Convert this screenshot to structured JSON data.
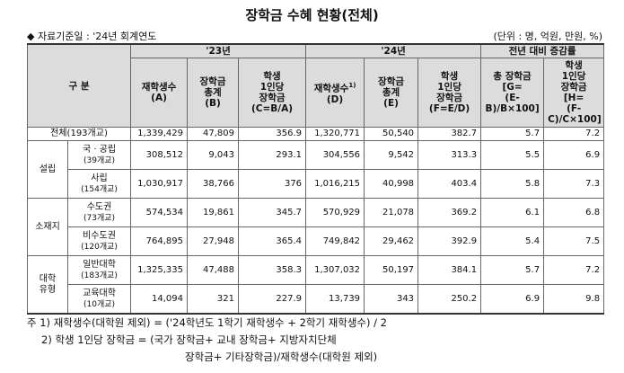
{
  "header": {
    "title": "장학금 수혜 현황(전체)",
    "basis": "◆ 자료기준일 : '24년 회계연도",
    "unit": "(단위 : 명, 억원, 만원, %)"
  },
  "table": {
    "head": {
      "category": "구 분",
      "groups": [
        "'23년",
        "'24년",
        "전년 대비 증감률"
      ],
      "columns": [
        {
          "lines": [
            "재학생수",
            "(A)"
          ]
        },
        {
          "lines": [
            "장학금",
            "총계",
            "(B)"
          ]
        },
        {
          "lines": [
            "학생",
            "1인당",
            "장학금",
            "(C=B/A)"
          ]
        },
        {
          "lines": [
            "재학생수",
            "(D)"
          ],
          "sup": "1)"
        },
        {
          "lines": [
            "장학금",
            "총계",
            "(E)"
          ]
        },
        {
          "lines": [
            "학생",
            "1인당",
            "장학금",
            "(F=E/D)"
          ]
        },
        {
          "lines": [
            "총 장학금",
            "[G=",
            "(E-B)/B×100]"
          ]
        },
        {
          "lines": [
            "학생",
            "1인당",
            "장학금",
            "[H=",
            "(F-C)/C×100]"
          ]
        }
      ]
    },
    "total": {
      "label": "전체(193개교)",
      "cells": [
        "1,339,429",
        "47,809",
        "356.9",
        "1,320,771",
        "50,540",
        "382.7",
        "5.7",
        "7.2"
      ]
    },
    "sections": [
      {
        "label": [
          "설립"
        ],
        "rows": [
          {
            "label": [
              "국 · 공립",
              "(39개교)"
            ],
            "cells": [
              "308,512",
              "9,043",
              "293.1",
              "304,556",
              "9,542",
              "313.3",
              "5.5",
              "6.9"
            ]
          },
          {
            "label": [
              "사립",
              "(154개교)"
            ],
            "cells": [
              "1,030,917",
              "38,766",
              "376",
              "1,016,215",
              "40,998",
              "403.4",
              "5.8",
              "7.3"
            ]
          }
        ]
      },
      {
        "label": [
          "소재지"
        ],
        "rows": [
          {
            "label": [
              "수도권",
              "(73개교)"
            ],
            "cells": [
              "574,534",
              "19,861",
              "345.7",
              "570,929",
              "21,078",
              "369.2",
              "6.1",
              "6.8"
            ]
          },
          {
            "label": [
              "비수도권",
              "(120개교)"
            ],
            "cells": [
              "764,895",
              "27,948",
              "365.4",
              "749,842",
              "29,462",
              "392.9",
              "5.4",
              "7.5"
            ]
          }
        ]
      },
      {
        "label": [
          "대학",
          "유형"
        ],
        "rows": [
          {
            "label": [
              "일반대학",
              "(183개교)"
            ],
            "cells": [
              "1,325,335",
              "47,488",
              "358.3",
              "1,307,032",
              "50,197",
              "384.1",
              "5.7",
              "7.2"
            ]
          },
          {
            "label": [
              "교육대학",
              "(10개교)"
            ],
            "cells": [
              "14,094",
              "321",
              "227.9",
              "13,739",
              "343",
              "250.2",
              "6.9",
              "9.8"
            ]
          }
        ]
      }
    ]
  },
  "notes": [
    "주 1) 재학생수(대학원 제외) = ('24학년도 1학기 재학생수 + 2학기 재학생수) / 2",
    "2) 학생 1인당 장학금 = (국가 장학금+ 교내 장학금+ 지방자치단체",
    "장학금+ 기타장학금)/재학생수(대학원 제외)"
  ]
}
